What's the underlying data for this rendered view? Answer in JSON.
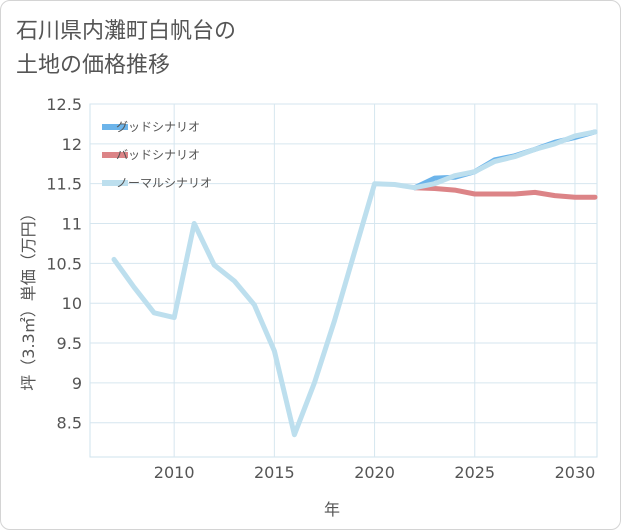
{
  "title_line1": "石川県内灘町白帆台の",
  "title_line2": "土地の価格推移",
  "chart_data": {
    "type": "line",
    "title": "石川県内灘町白帆台の土地の価格推移",
    "xlabel": "年",
    "ylabel": "坪（3.3㎡）単価（万円）",
    "xlim": [
      2005.8,
      2031.1
    ],
    "ylim": [
      8.07,
      12.5
    ],
    "xticks": [
      2010,
      2015,
      2020,
      2025,
      2030
    ],
    "yticks": [
      8.5,
      9,
      9.5,
      10,
      10.5,
      11,
      11.5,
      12,
      12.5
    ],
    "legend_position": "top-left",
    "series": [
      {
        "name": "グッドシナリオ",
        "color": "#6cb4ea",
        "x": [
          2022,
          2023,
          2024,
          2025,
          2026,
          2027,
          2028,
          2029,
          2030,
          2031
        ],
        "y": [
          11.45,
          11.57,
          11.58,
          11.65,
          11.8,
          11.85,
          11.93,
          12.02,
          12.08,
          12.15
        ]
      },
      {
        "name": "バッドシナリオ",
        "color": "#dc8487",
        "x": [
          2022,
          2023,
          2024,
          2025,
          2026,
          2027,
          2028,
          2029,
          2030,
          2031
        ],
        "y": [
          11.45,
          11.44,
          11.42,
          11.37,
          11.37,
          11.37,
          11.39,
          11.35,
          11.33,
          11.33
        ]
      },
      {
        "name": "ノーマルシナリオ",
        "color": "#bddfee",
        "x": [
          2007,
          2008,
          2009,
          2010,
          2011,
          2012,
          2013,
          2014,
          2015,
          2016,
          2017,
          2018,
          2019,
          2020,
          2021,
          2022,
          2023,
          2024,
          2025,
          2026,
          2027,
          2028,
          2029,
          2030,
          2031
        ],
        "y": [
          10.55,
          10.2,
          9.88,
          9.82,
          11.0,
          10.48,
          10.28,
          9.98,
          9.4,
          8.35,
          9.0,
          9.78,
          10.64,
          11.5,
          11.49,
          11.45,
          11.5,
          11.6,
          11.65,
          11.78,
          11.84,
          11.93,
          12.0,
          12.1,
          12.15
        ]
      }
    ]
  }
}
